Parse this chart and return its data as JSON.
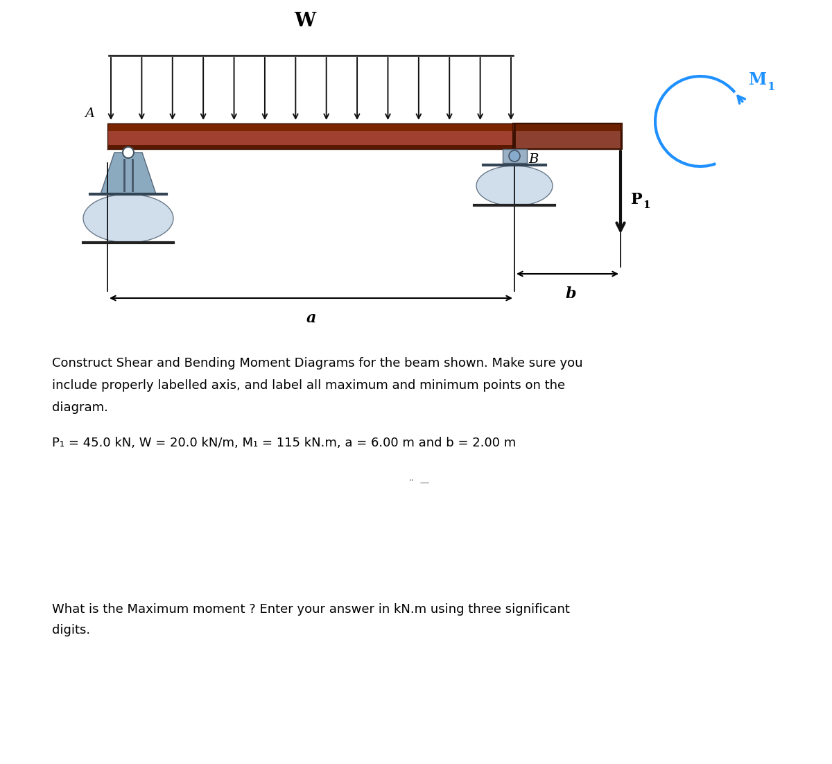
{
  "title_W": "W",
  "label_A": "A",
  "label_B": "B",
  "label_M1": "M",
  "label_M1_sub": "1",
  "label_P1": "P",
  "label_P1_sub": "1",
  "label_a": "a",
  "label_b": "b",
  "text_line1": "Construct Shear and Bending Moment Diagrams for the beam shown. Make sure you",
  "text_line2": "include properly labelled axis, and label all maximum and minimum points on the",
  "text_line3": "diagram.",
  "text_params": "P₁ = 45.0 kN, W = 20.0 kN/m, M₁ = 115 kN.m, a = 6.00 m and b = 2.00 m",
  "text_question_line1": "What is the Maximum moment ? Enter your answer in kN.m using three significant",
  "text_question_line2": "digits.",
  "beam_color": "#7B2500",
  "beam_face_color": "#A04030",
  "beam_top_color": "#8B3020",
  "overhang_color": "#8B4030",
  "support_color_A": "#8BAAC0",
  "support_color_B": "#9AB0C5",
  "arrow_color": "#111111",
  "moment_arrow_color": "#1E90FF",
  "P1_label_color": "#000000",
  "M1_label_color": "#1E90FF",
  "bg_color": "#FFFFFF",
  "font_size_W": 20,
  "font_size_AB": 14,
  "font_size_dim": 16,
  "font_size_text": 13,
  "font_size_params": 13,
  "font_size_question": 13,
  "quotes_text": "“  —"
}
